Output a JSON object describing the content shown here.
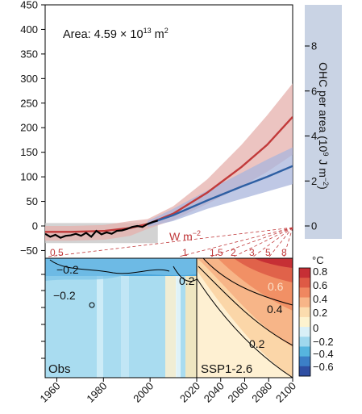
{
  "chart_data": [
    {
      "type": "line",
      "panel": "top",
      "annotation": {
        "text": "Area: 4.59 × 10",
        "exp": "13",
        "unit": " m",
        "unit_exp": "2"
      },
      "y_left": {
        "ticks": [
          450,
          400,
          350,
          300,
          250,
          200,
          150,
          100,
          50,
          0,
          -50
        ],
        "tick_labels": [
          "450",
          "400",
          "350",
          "300",
          "250",
          "200",
          "150",
          "100",
          "50",
          "0",
          "−50"
        ],
        "ylim": [
          -60,
          450
        ]
      },
      "y_right": {
        "label_parts": [
          "OHC per area (10",
          "9",
          " J m",
          "−2",
          ")"
        ],
        "ticks": [
          8,
          6,
          4,
          2,
          0
        ],
        "tick_labels": [
          "8",
          "6",
          "4",
          "2",
          "0"
        ]
      },
      "xlim": [
        1955,
        2100
      ],
      "series": [
        {
          "color": "#c23a3a",
          "band": "#e6b0ac",
          "x": [
            1955,
            1970,
            1990,
            2005,
            2015,
            2030,
            2050,
            2070,
            2085,
            2100
          ],
          "y": [
            -12,
            -12,
            -10,
            -4,
            4,
            25,
            68,
            120,
            165,
            222
          ],
          "lo": [
            -30,
            -30,
            -28,
            -20,
            -6,
            12,
            45,
            80,
            110,
            145
          ],
          "hi": [
            0,
            0,
            2,
            10,
            14,
            40,
            95,
            165,
            225,
            290
          ]
        },
        {
          "color": "#2e5fa3",
          "band": "#a9b5dc",
          "x": [
            2015,
            2030,
            2050,
            2070,
            2085,
            2100
          ],
          "y": [
            4,
            22,
            52,
            80,
            100,
            122
          ],
          "lo": [
            -2,
            10,
            35,
            55,
            70,
            85
          ],
          "hi": [
            10,
            35,
            72,
            108,
            135,
            160
          ]
        },
        {
          "color": "#000000",
          "x": [
            1955,
            1958,
            1961,
            1964,
            1967,
            1970,
            1973,
            1976,
            1979,
            1982,
            1985,
            1988,
            1991,
            1994,
            1997,
            2000,
            2003,
            2006,
            2009,
            2012,
            2015,
            2018,
            2021
          ],
          "y": [
            -16,
            -22,
            -18,
            -24,
            -20,
            -19,
            -16,
            -20,
            -14,
            -22,
            -10,
            -17,
            -13,
            -16,
            -10,
            -9,
            -6,
            -2,
            0,
            -2,
            4,
            8,
            11
          ],
          "band_lo": -35,
          "band_hi": 6
        }
      ],
      "w_label": {
        "text": "W m",
        "exp": "−2"
      },
      "rate_labels": [
        "0.5",
        "1",
        "1.5",
        "2",
        "3",
        "5",
        "8"
      ],
      "rate_values": [
        0.5,
        1,
        1.5,
        2,
        3,
        5,
        8
      ]
    },
    {
      "type": "heatmap",
      "panel": "bottom",
      "x_tick_labels": [
        "1960",
        "1980",
        "2000",
        "2020",
        "2040",
        "2060",
        "2080",
        "2100"
      ],
      "left_label": "Obs",
      "right_label": "SSP1-2.6",
      "contour_labels": {
        "obs": [
          "−0.2",
          "0.2",
          "−0.2"
        ],
        "proj": [
          "0.6",
          "0.4",
          "0.2"
        ]
      },
      "colorbar": {
        "unit": "°C",
        "tick_labels": [
          "0.8",
          "0.6",
          "0.4",
          "0.2",
          "0",
          "−0.2",
          "−0.4",
          "−0.6"
        ],
        "colors": [
          "#c62f35",
          "#de5a45",
          "#ef8760",
          "#f7b588",
          "#fbdcae",
          "#fdf3cf",
          "#d9f0f7",
          "#9fd8ee",
          "#56b5df",
          "#3c7fc7",
          "#2f4fa3"
        ]
      }
    }
  ]
}
